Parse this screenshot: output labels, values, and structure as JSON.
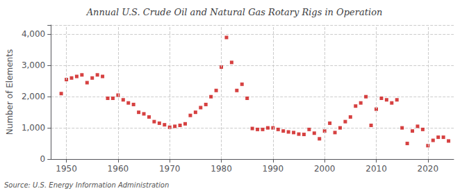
{
  "chart_data": {
    "type": "scatter",
    "title": "Annual U.S. Crude Oil and Natural Gas Rotary Rigs in Operation",
    "ylabel": "Number of Elements",
    "annotations": [
      "Source: U.S. Energy Information Administration"
    ],
    "color": "#cc1111",
    "marker": "square",
    "grid": true,
    "xlim": [
      1947,
      2025
    ],
    "ylim": [
      0,
      4300
    ],
    "xticks": [
      1950,
      1960,
      1970,
      1980,
      1990,
      2000,
      2010,
      2020
    ],
    "yticks": [
      0,
      {
        "value": 1000,
        "label": "1,000"
      },
      {
        "value": 2000,
        "label": "2,000"
      },
      {
        "value": 3000,
        "label": "3,000"
      },
      {
        "value": 4000,
        "label": "4,000"
      }
    ],
    "x": [
      1949,
      1950,
      1951,
      1952,
      1953,
      1954,
      1955,
      1956,
      1957,
      1958,
      1959,
      1960,
      1961,
      1962,
      1963,
      1964,
      1965,
      1966,
      1967,
      1968,
      1969,
      1970,
      1971,
      1972,
      1973,
      1974,
      1975,
      1976,
      1977,
      1978,
      1979,
      1980,
      1981,
      1982,
      1983,
      1984,
      1985,
      1986,
      1987,
      1988,
      1989,
      1990,
      1991,
      1992,
      1993,
      1994,
      1995,
      1996,
      1997,
      1998,
      1999,
      2000,
      2001,
      2002,
      2003,
      2004,
      2005,
      2006,
      2007,
      2008,
      2009,
      2010,
      2011,
      2012,
      2013,
      2014,
      2015,
      2016,
      2017,
      2018,
      2019,
      2020,
      2021,
      2022,
      2023,
      2024
    ],
    "values": [
      2100,
      2550,
      2600,
      2650,
      2700,
      2450,
      2600,
      2700,
      2650,
      1950,
      1950,
      2050,
      1900,
      1800,
      1750,
      1500,
      1450,
      1350,
      1200,
      1150,
      1100,
      1020,
      1050,
      1080,
      1130,
      1400,
      1500,
      1650,
      1750,
      2000,
      2200,
      2950,
      3900,
      3100,
      2200,
      2400,
      1950,
      980,
      950,
      950,
      1000,
      1000,
      950,
      900,
      870,
      850,
      800,
      790,
      950,
      830,
      650,
      900,
      1150,
      850,
      1000,
      1200,
      1350,
      1700,
      1800,
      2000,
      1080,
      1600,
      1950,
      1900,
      1800,
      1900,
      1000,
      500,
      900,
      1050,
      950,
      430,
      600,
      700,
      700,
      580
    ]
  }
}
